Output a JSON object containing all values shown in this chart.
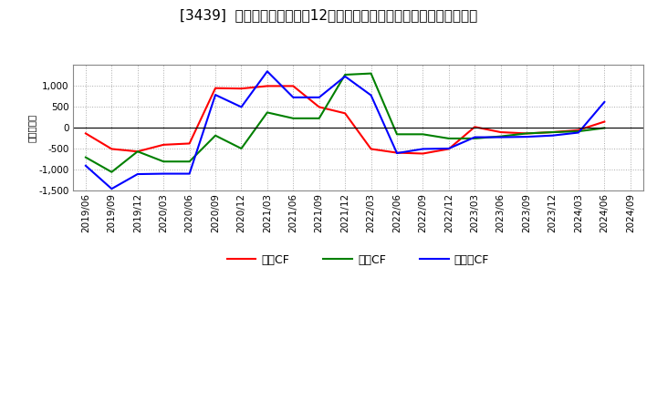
{
  "title": "[3439]  キャッシュフローの12か月移動合計の対前年同期増減額の推移",
  "ylabel": "（百万円）",
  "x_labels": [
    "2019/06",
    "2019/09",
    "2019/12",
    "2020/03",
    "2020/06",
    "2020/09",
    "2020/12",
    "2021/03",
    "2021/06",
    "2021/09",
    "2021/12",
    "2022/03",
    "2022/06",
    "2022/09",
    "2022/12",
    "2023/03",
    "2023/06",
    "2023/09",
    "2023/12",
    "2024/03",
    "2024/06",
    "2024/09"
  ],
  "eigyo_cf": [
    -130,
    -500,
    -560,
    -400,
    -370,
    950,
    940,
    1000,
    1000,
    500,
    350,
    -500,
    -590,
    -610,
    -500,
    25,
    -100,
    -130,
    -100,
    -50,
    150,
    null
  ],
  "toshi_cf": [
    -700,
    -1050,
    -560,
    -800,
    -800,
    -180,
    -490,
    370,
    230,
    230,
    1270,
    1300,
    -150,
    -150,
    -250,
    -250,
    -200,
    -130,
    -100,
    -80,
    0,
    null
  ],
  "free_cf": [
    -900,
    -1450,
    -1100,
    -1090,
    -1090,
    790,
    500,
    1350,
    730,
    730,
    1230,
    780,
    -600,
    -500,
    -490,
    -220,
    -220,
    -210,
    -180,
    -110,
    620,
    null
  ],
  "line_colors": {
    "eigyo": "#ff0000",
    "toshi": "#008000",
    "free": "#0000ff"
  },
  "legend_labels": {
    "eigyo": "営業CF",
    "toshi": "投資CF",
    "free": "フリーCF"
  },
  "ylim": [
    -1500,
    1500
  ],
  "yticks": [
    -1500,
    -1000,
    -500,
    0,
    500,
    1000
  ],
  "bg_color": "#ffffff",
  "plot_bg_color": "#ffffff",
  "grid_color": "#aaaaaa",
  "title_fontsize": 11,
  "axis_fontsize": 7.5,
  "legend_fontsize": 9
}
